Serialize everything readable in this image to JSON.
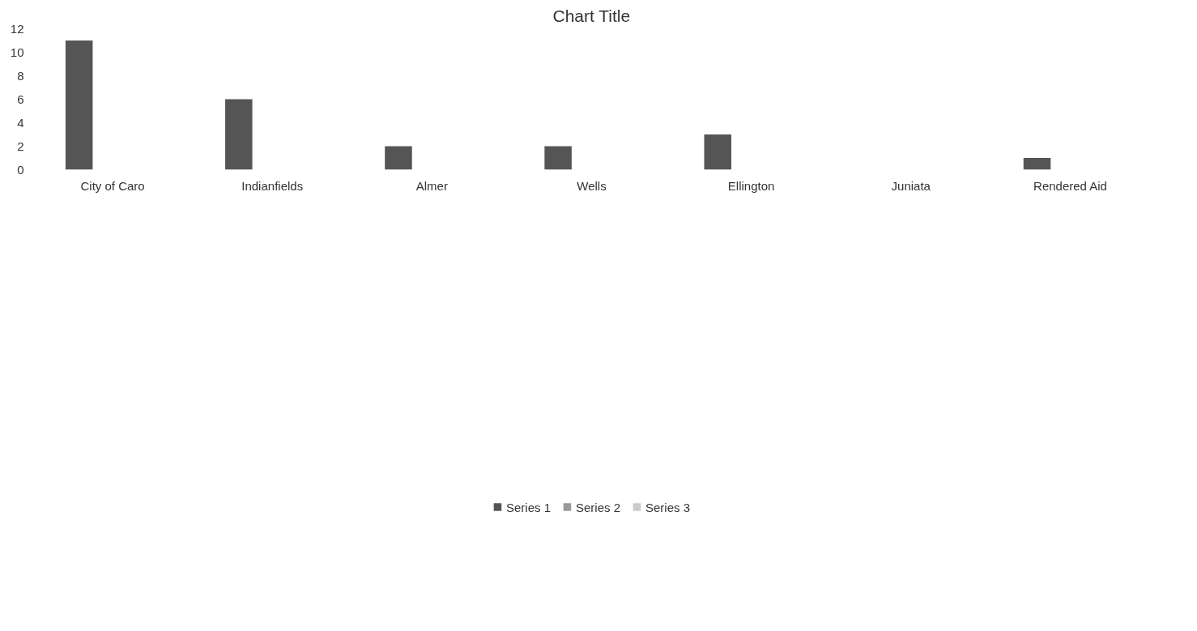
{
  "chart_data": {
    "type": "bar",
    "title": "Chart Title",
    "categories": [
      "City of Caro",
      "Indianfields",
      "Almer",
      "Wells",
      "Ellington",
      "Juniata",
      "Rendered Aid"
    ],
    "series": [
      {
        "name": "Series 1",
        "color": "#555555",
        "values": [
          11,
          6,
          2,
          2,
          3,
          null,
          1
        ]
      },
      {
        "name": "Series 2",
        "color": "#999999",
        "values": [
          null,
          null,
          null,
          null,
          null,
          null,
          null
        ]
      },
      {
        "name": "Series 3",
        "color": "#cccccc",
        "values": [
          null,
          null,
          null,
          null,
          null,
          null,
          null
        ]
      }
    ],
    "ylim": [
      0,
      12
    ],
    "yticks": [
      0,
      2,
      4,
      6,
      8,
      10,
      12
    ],
    "grid": false,
    "legend": "bottom"
  }
}
